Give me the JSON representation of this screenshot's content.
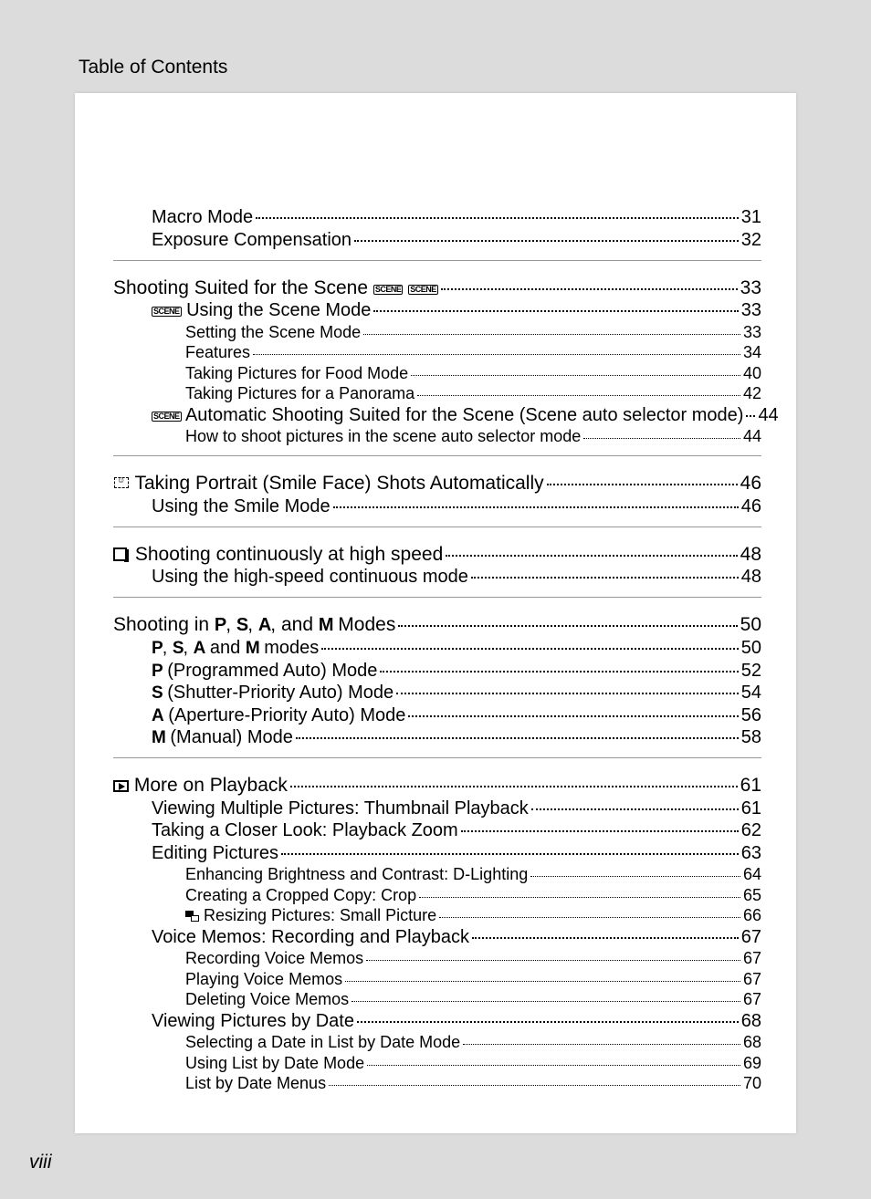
{
  "header_title": "Table of Contents",
  "page_number_roman": "viii",
  "e0": {
    "text": "Macro Mode",
    "page": "31"
  },
  "e1": {
    "text": "Exposure Compensation",
    "page": "32"
  },
  "s1": {
    "text": "Shooting Suited for the Scene",
    "page": "33"
  },
  "e2": {
    "text": " Using the Scene Mode",
    "page": "33"
  },
  "e3": {
    "text": "Setting the Scene Mode",
    "page": "33"
  },
  "e4": {
    "text": "Features",
    "page": "34"
  },
  "e5": {
    "text": "Taking Pictures for Food Mode",
    "page": "40"
  },
  "e6": {
    "text": "Taking Pictures for a Panorama",
    "page": "42"
  },
  "e7": {
    "text": " Automatic Shooting Suited for the Scene (Scene auto selector mode)",
    "page": "44"
  },
  "e8": {
    "text": "How to shoot pictures in the scene auto selector mode",
    "page": "44"
  },
  "s2": {
    "text": " Taking Portrait (Smile Face) Shots Automatically",
    "page": "46"
  },
  "e9": {
    "text": "Using the Smile Mode",
    "page": "46"
  },
  "s3": {
    "text": " Shooting continuously at high speed",
    "page": "48"
  },
  "e10": {
    "text": "Using the high-speed continuous mode",
    "page": "48"
  },
  "s4": {
    "prefix": "Shooting in ",
    "mid": ", and ",
    "suffix": " Modes",
    "page": "50"
  },
  "e11": {
    "mid": " and ",
    "suffix": " modes",
    "page": "50"
  },
  "e12": {
    "text": " (Programmed Auto) Mode",
    "page": "52"
  },
  "e13": {
    "text": " (Shutter-Priority Auto) Mode",
    "page": "54"
  },
  "e14": {
    "text": " (Aperture-Priority Auto) Mode",
    "page": "56"
  },
  "e15": {
    "text": " (Manual) Mode",
    "page": "58"
  },
  "s5": {
    "text": " More on Playback",
    "page": "61"
  },
  "e16": {
    "text": "Viewing Multiple Pictures: Thumbnail Playback",
    "page": "61"
  },
  "e17": {
    "text": "Taking a Closer Look: Playback Zoom",
    "page": "62"
  },
  "e18": {
    "text": "Editing Pictures",
    "page": "63"
  },
  "e19": {
    "text": "Enhancing Brightness and Contrast: D-Lighting",
    "page": "64"
  },
  "e20": {
    "text": "Creating a Cropped Copy: Crop",
    "page": "65"
  },
  "e21": {
    "text": " Resizing Pictures: Small Picture",
    "page": "66"
  },
  "e22": {
    "text": "Voice Memos: Recording and Playback",
    "page": "67"
  },
  "e23": {
    "text": "Recording Voice Memos",
    "page": "67"
  },
  "e24": {
    "text": "Playing Voice Memos",
    "page": "67"
  },
  "e25": {
    "text": "Deleting Voice Memos",
    "page": "67"
  },
  "e26": {
    "text": "Viewing Pictures by Date",
    "page": "68"
  },
  "e27": {
    "text": "Selecting a Date in List by Date Mode",
    "page": "68"
  },
  "e28": {
    "text": "Using List by Date Mode",
    "page": "69"
  },
  "e29": {
    "text": "List by Date Menus",
    "page": "70"
  }
}
